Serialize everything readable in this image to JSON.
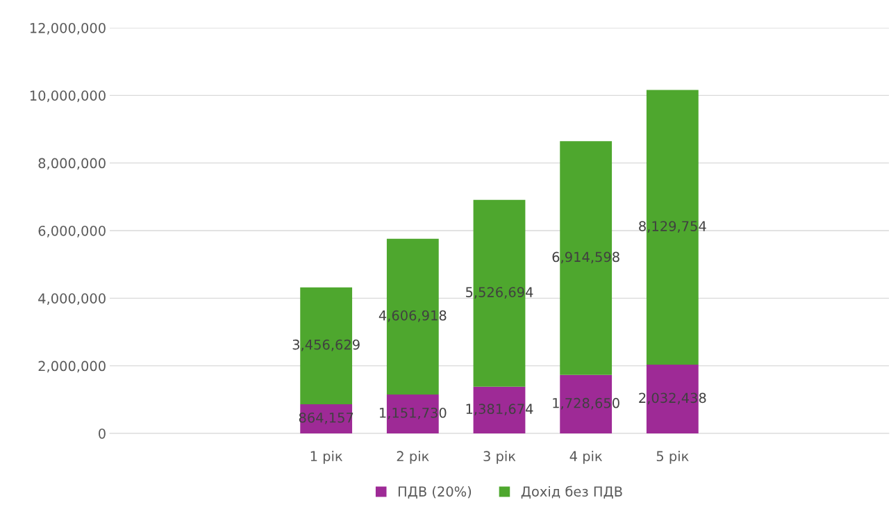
{
  "chart_data": {
    "type": "bar",
    "stacked": true,
    "categories": [
      null,
      null,
      "1 рік",
      "2 рік",
      "3 рік",
      "4 рік",
      "5 рік",
      null,
      null
    ],
    "series": [
      {
        "name": "ПДВ (20%)",
        "color": "#9e2a96",
        "values": [
          null,
          null,
          864157,
          1151730,
          1381674,
          1728650,
          2032438,
          null,
          null
        ],
        "value_labels": [
          null,
          null,
          "864,157",
          "1,151,730",
          "1,381,674",
          "1,728,650",
          "2,032,438",
          null,
          null
        ]
      },
      {
        "name": "Дохід без ПДВ",
        "color": "#4ea72e",
        "values": [
          null,
          null,
          3456629,
          4606918,
          5526694,
          6914598,
          8129754,
          null,
          null
        ],
        "value_labels": [
          null,
          null,
          "3,456,629",
          "4,606,918",
          "5,526,694",
          "6,914,598",
          "8,129,754",
          null,
          null
        ]
      }
    ],
    "ylim": [
      0,
      12000000
    ],
    "yticks": [
      {
        "value": 0,
        "label": "0"
      },
      {
        "value": 2000000,
        "label": "2,000,000"
      },
      {
        "value": 4000000,
        "label": "4,000,000"
      },
      {
        "value": 6000000,
        "label": "6,000,000"
      },
      {
        "value": 8000000,
        "label": "8,000,000"
      },
      {
        "value": 10000000,
        "label": "10,000,000"
      },
      {
        "value": 12000000,
        "label": "12,000,000"
      }
    ],
    "grid": "y",
    "legend": "bottom"
  }
}
